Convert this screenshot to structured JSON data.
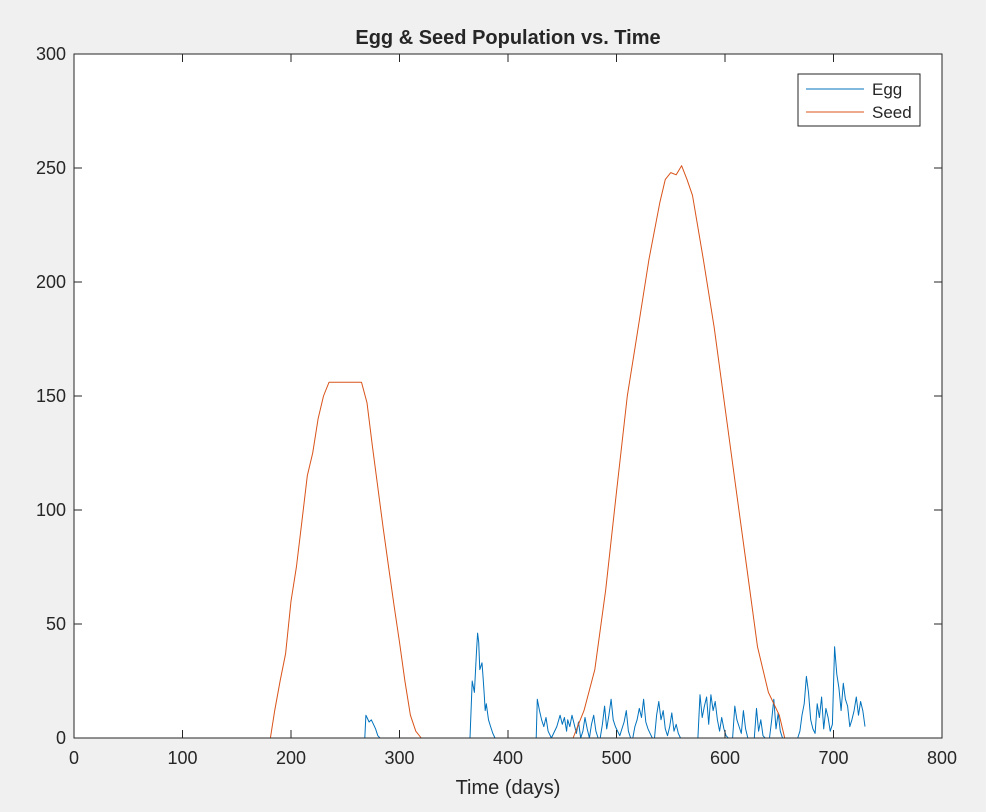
{
  "chart_data": {
    "type": "line",
    "title": "Egg & Seed Population vs. Time",
    "xlabel": "Time (days)",
    "ylabel": "",
    "xlim": [
      0,
      800
    ],
    "ylim": [
      0,
      300
    ],
    "xticks": [
      0,
      100,
      200,
      300,
      400,
      500,
      600,
      700,
      800
    ],
    "yticks": [
      0,
      50,
      100,
      150,
      200,
      250,
      300
    ],
    "grid": false,
    "legend_position": "top-right",
    "series": [
      {
        "name": "Egg",
        "color": "#0072BD",
        "x": [
          0,
          268,
          269,
          270,
          272,
          274,
          276,
          278,
          280,
          282,
          285,
          365,
          367,
          369,
          371,
          372,
          373,
          374,
          376,
          377,
          378,
          379,
          380,
          382,
          384,
          386,
          388,
          390,
          395,
          426,
          427,
          429,
          431,
          433,
          435,
          437,
          440,
          445,
          448,
          450,
          452,
          454,
          455,
          457,
          459,
          461,
          463,
          465,
          467,
          469,
          471,
          473,
          475,
          477,
          479,
          481,
          483,
          485,
          487,
          489,
          491,
          493,
          495,
          497,
          499,
          501,
          503,
          505,
          507,
          509,
          511,
          513,
          515,
          517,
          519,
          521,
          523,
          525,
          527,
          529,
          531,
          533,
          535,
          537,
          539,
          541,
          543,
          545,
          547,
          549,
          551,
          553,
          555,
          557,
          559,
          561,
          563,
          565,
          567,
          569,
          571,
          573,
          575,
          577,
          579,
          581,
          583,
          585,
          587,
          589,
          591,
          593,
          595,
          597,
          599,
          601,
          603,
          605,
          607,
          609,
          611,
          613,
          615,
          617,
          619,
          621,
          623,
          625,
          627,
          629,
          631,
          633,
          635,
          637,
          639,
          641,
          643,
          645,
          647,
          649,
          651,
          653,
          655,
          657,
          659,
          661,
          663,
          665,
          667,
          669,
          671,
          673,
          675,
          677,
          679,
          681,
          683,
          685,
          687,
          689,
          691,
          693,
          695,
          697,
          699,
          701,
          703,
          705,
          707,
          709,
          711,
          713,
          715,
          717,
          719,
          721,
          723,
          725,
          727,
          729
        ],
        "y": [
          0,
          0,
          10,
          9,
          7,
          8,
          6,
          4,
          1,
          0,
          0,
          0,
          25,
          20,
          38,
          46,
          42,
          30,
          33,
          27,
          20,
          12,
          15,
          8,
          5,
          2,
          0,
          0,
          0,
          0,
          17,
          12,
          8,
          5,
          9,
          3,
          0,
          5,
          10,
          6,
          9,
          3,
          8,
          5,
          10,
          6,
          2,
          7,
          0,
          3,
          9,
          4,
          0,
          6,
          10,
          3,
          0,
          0,
          6,
          14,
          4,
          10,
          17,
          8,
          5,
          3,
          1,
          4,
          7,
          12,
          3,
          0,
          0,
          5,
          8,
          13,
          9,
          17,
          7,
          4,
          2,
          0,
          0,
          10,
          16,
          8,
          12,
          4,
          1,
          5,
          11,
          3,
          6,
          2,
          0,
          0,
          0,
          0,
          0,
          0,
          0,
          0,
          0,
          19,
          9,
          14,
          18,
          6,
          19,
          12,
          16,
          8,
          3,
          9,
          4,
          1,
          0,
          0,
          0,
          14,
          8,
          5,
          2,
          12,
          4,
          0,
          0,
          0,
          0,
          13,
          3,
          8,
          1,
          0,
          0,
          0,
          8,
          17,
          4,
          11,
          3,
          0,
          0,
          0,
          0,
          0,
          0,
          0,
          0,
          3,
          10,
          15,
          27,
          20,
          8,
          4,
          2,
          15,
          9,
          18,
          4,
          13,
          9,
          3,
          6,
          40,
          28,
          22,
          12,
          24,
          17,
          14,
          5,
          8,
          12,
          18,
          10,
          16,
          12,
          5
        ]
      },
      {
        "name": "Seed",
        "color": "#D95319",
        "x": [
          0,
          181,
          185,
          190,
          195,
          200,
          205,
          210,
          215,
          220,
          225,
          230,
          235,
          240,
          245,
          250,
          255,
          260,
          265,
          270,
          275,
          280,
          285,
          290,
          295,
          300,
          305,
          310,
          315,
          320,
          325,
          330,
          450,
          460,
          465,
          470,
          480,
          490,
          500,
          510,
          520,
          530,
          540,
          545,
          550,
          555,
          560,
          565,
          570,
          580,
          590,
          600,
          610,
          620,
          630,
          640,
          650,
          655,
          800
        ],
        "y": [
          0,
          0,
          12,
          25,
          37,
          60,
          75,
          95,
          115,
          125,
          140,
          150,
          156,
          156,
          156,
          156,
          156,
          156,
          156,
          147,
          128,
          110,
          92,
          75,
          58,
          42,
          25,
          10,
          3,
          0,
          0,
          0,
          0,
          0,
          6,
          12,
          30,
          65,
          108,
          150,
          180,
          210,
          235,
          245,
          248,
          247,
          251,
          245,
          238,
          210,
          180,
          145,
          110,
          75,
          40,
          20,
          10,
          0,
          0
        ]
      }
    ]
  }
}
